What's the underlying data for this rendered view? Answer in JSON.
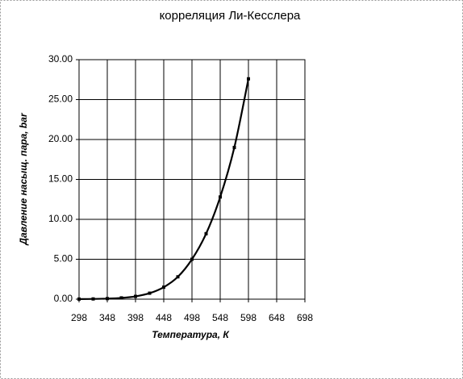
{
  "chart_data": {
    "type": "scatter",
    "title": "корреляция Ли-Кесслера",
    "x_label": "Температура, К",
    "y_label": "Давление насыщ. пара, bar",
    "series": [
      {
        "color": "#000000",
        "x": [
          298,
          323,
          348,
          373,
          398,
          423,
          448,
          473,
          498,
          523,
          548,
          573,
          598
        ],
        "values": [
          0.01,
          0.03,
          0.07,
          0.16,
          0.35,
          0.75,
          1.5,
          2.8,
          5.0,
          8.2,
          12.8,
          19.0,
          27.6
        ]
      }
    ],
    "xlim": [
      298,
      698
    ],
    "xticks": [
      298,
      348,
      398,
      448,
      498,
      548,
      598,
      648,
      698
    ],
    "ylim": [
      0,
      30
    ],
    "yticks": [
      {
        "value": 0,
        "label": "0.00"
      },
      {
        "value": 5,
        "label": "5.00"
      },
      {
        "value": 10,
        "label": "10.00"
      },
      {
        "value": 15,
        "label": "15.00"
      },
      {
        "value": 20,
        "label": "20.00"
      },
      {
        "value": 25,
        "label": "25.00"
      },
      {
        "value": 30,
        "label": "30.00"
      }
    ],
    "grid": true
  }
}
